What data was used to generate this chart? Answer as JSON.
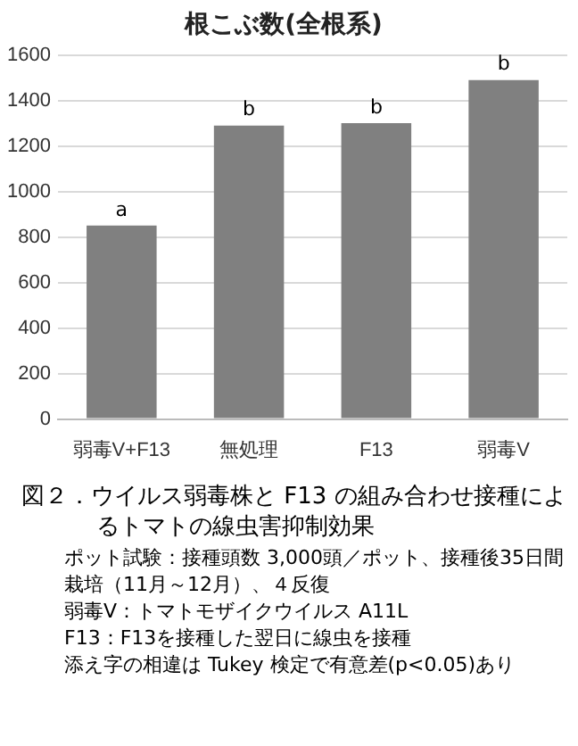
{
  "chart_data": {
    "type": "bar",
    "title": "根こぶ数(全根系)",
    "categories": [
      "弱毒V+F13",
      "無処理",
      "F13",
      "弱毒V"
    ],
    "values": [
      850,
      1290,
      1300,
      1490
    ],
    "color": "#808080",
    "ylim": [
      0,
      1600
    ],
    "yticks": [
      0,
      200,
      400,
      600,
      800,
      1000,
      1200,
      1400,
      1600
    ],
    "grid": "y",
    "legend": false,
    "annotations": [
      {
        "text": "a",
        "x": "弱毒V+F13",
        "y": 850
      },
      {
        "text": "b",
        "x": "無処理",
        "y": 1290
      },
      {
        "text": "b",
        "x": "F13",
        "y": 1300
      },
      {
        "text": "b",
        "x": "弱毒V",
        "y": 1490
      },
      "図２．ウイルス弱毒株と F13 の組み合わせ接種によるトマトの線虫害抑制効果",
      "ポット試験：接種頭数 3,000頭／ポット、接種後35日間栽培（11月～12月）、４反復",
      "弱毒Ⅴ：トマトモザイクウイルス A11L",
      "F13：F13を接種した翌日に線虫を接種",
      "添え字の相違は Tukey 検定で有意差(p<0.05)あり"
    ]
  }
}
